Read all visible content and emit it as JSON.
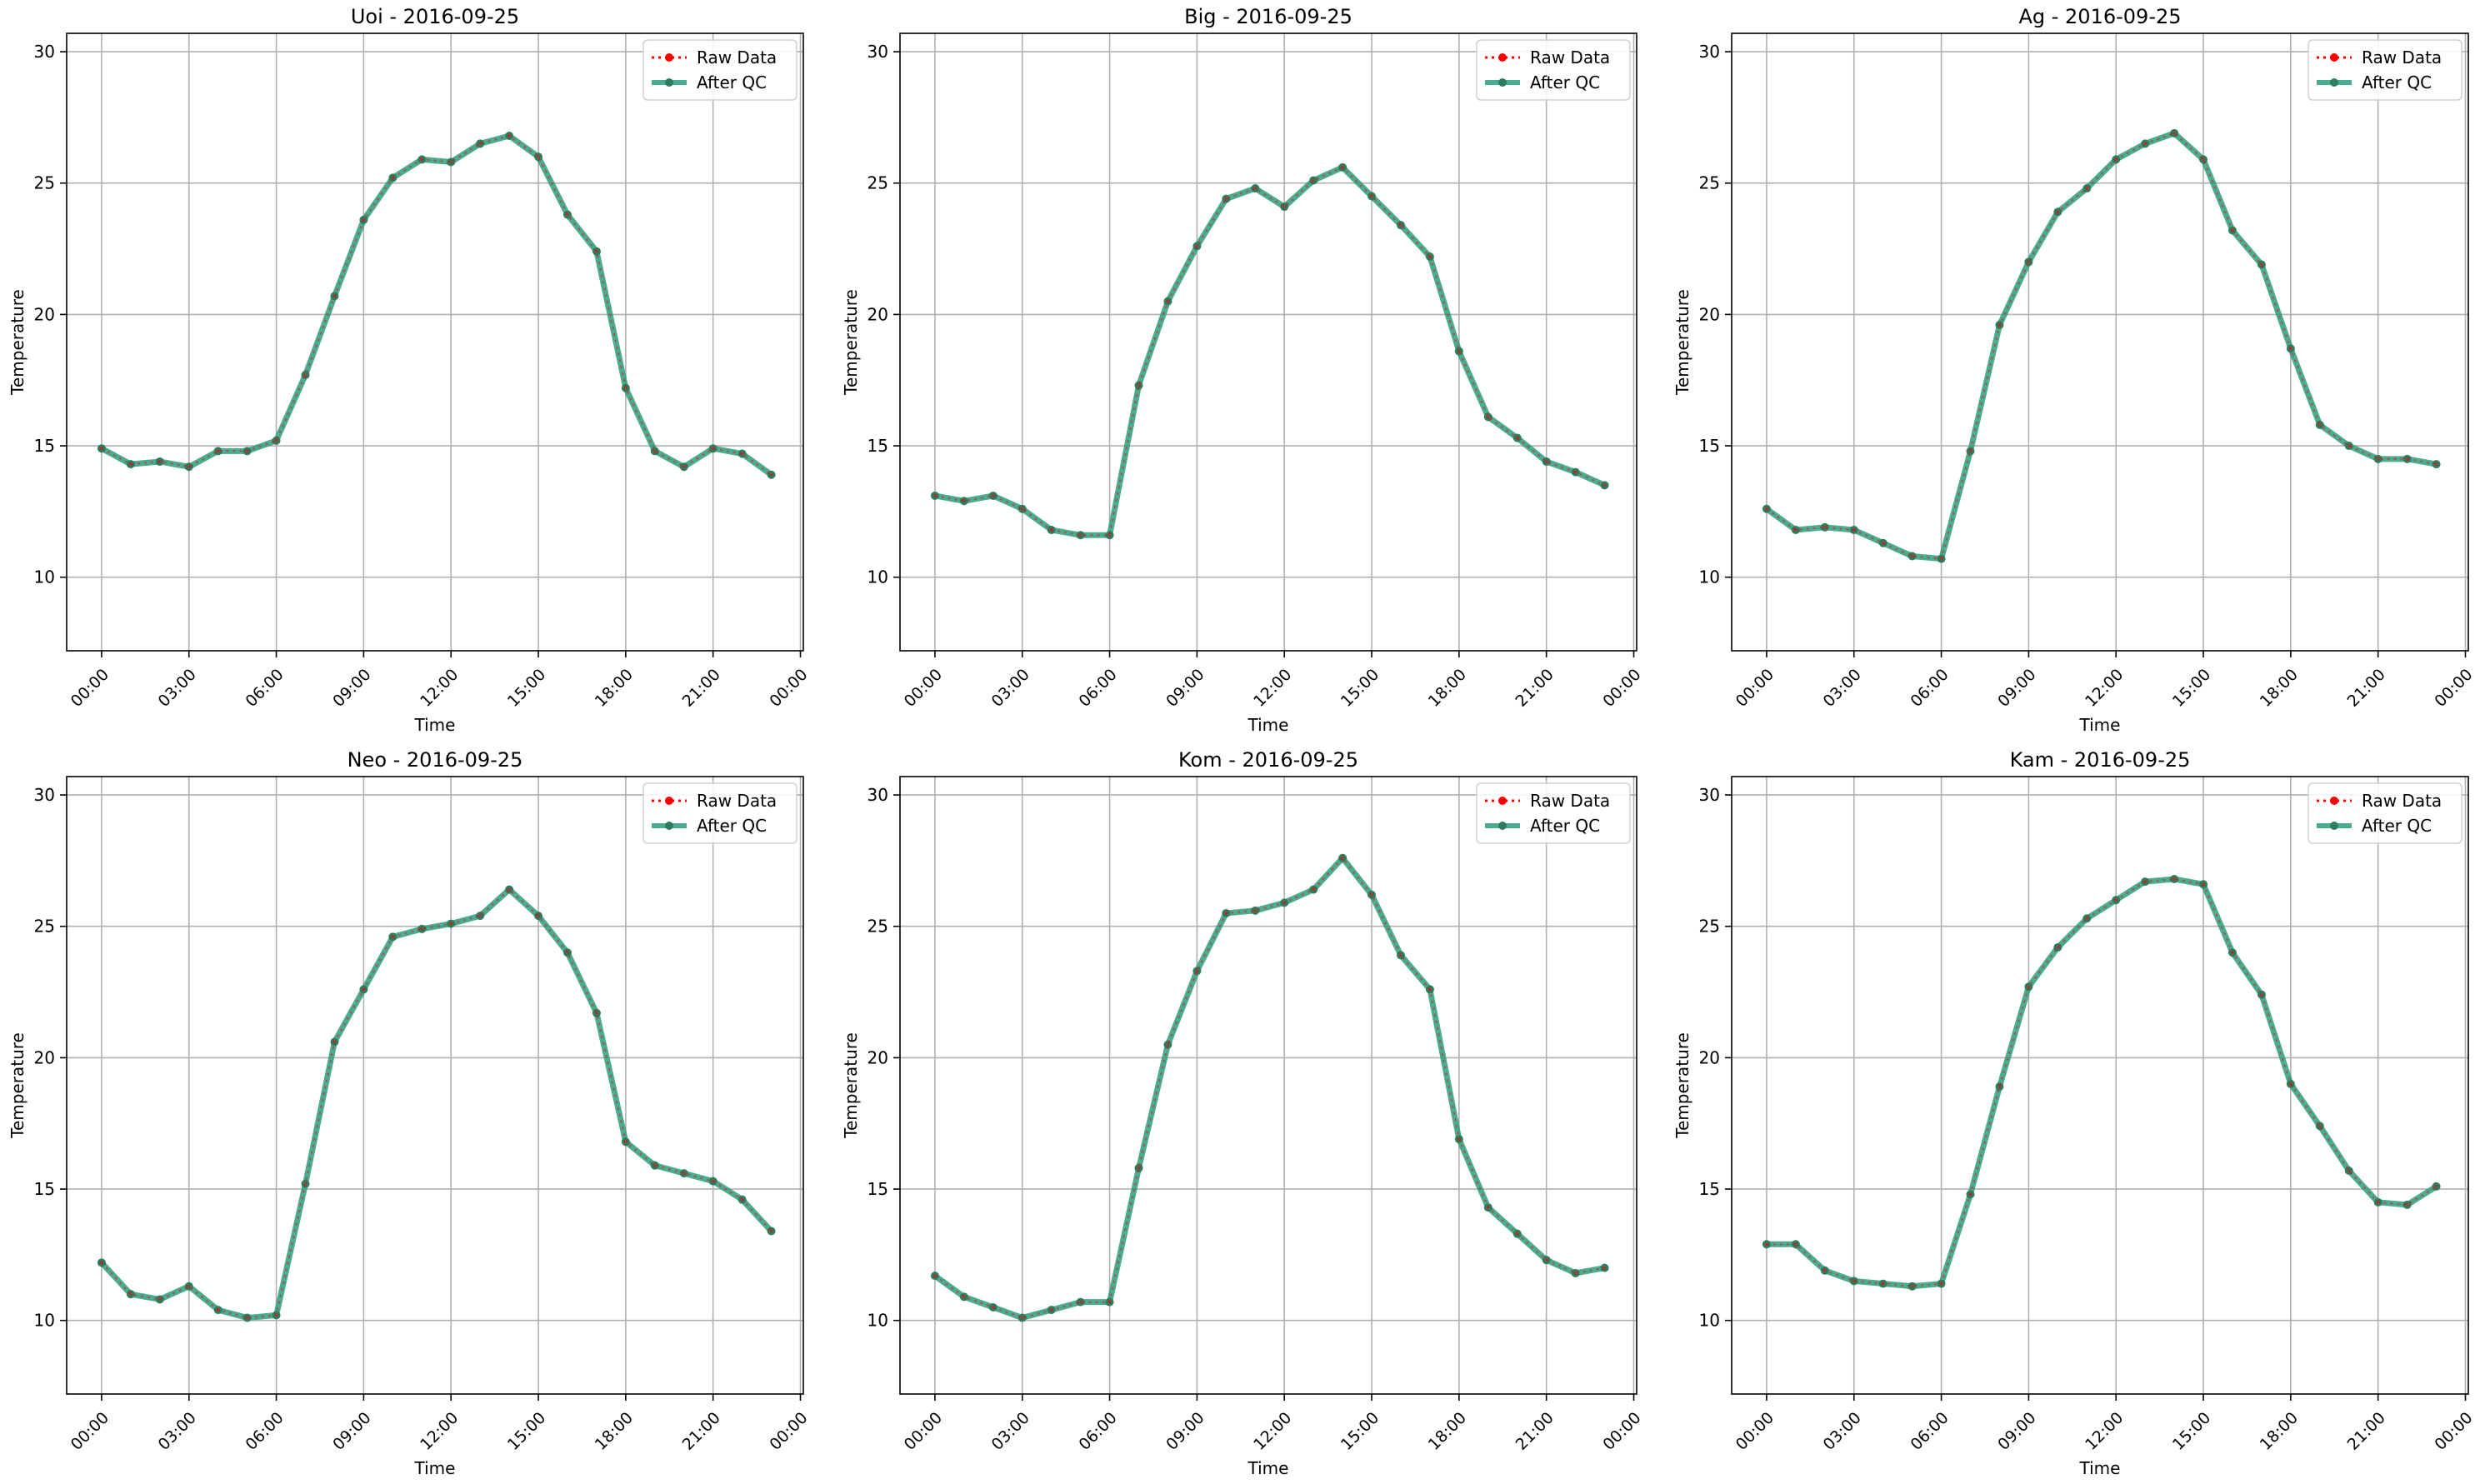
{
  "x_ticks": [
    "00:00",
    "03:00",
    "06:00",
    "09:00",
    "12:00",
    "15:00",
    "18:00",
    "21:00",
    "00:00"
  ],
  "y_ticks": [
    10,
    15,
    20,
    25,
    30
  ],
  "colors": {
    "raw": "#ff0000",
    "qc": "#2a9d7c",
    "marker": "#2e7d60",
    "grid": "#b0b0b0"
  },
  "chart_data": [
    {
      "type": "line",
      "title": "Uoi - 2016-09-25",
      "xlabel": "Time",
      "ylabel": "Temperature",
      "ylim": [
        7.2,
        30.7
      ],
      "xlim": [
        -1.2,
        24.1
      ],
      "legend": "top-right",
      "grid": true,
      "x_hours": [
        0,
        1,
        2,
        3,
        4,
        5,
        6,
        7,
        8,
        9,
        10,
        11,
        12,
        13,
        14,
        15,
        16,
        17,
        18,
        19,
        20,
        21,
        22,
        23
      ],
      "series": [
        {
          "name": "Raw Data",
          "values": [
            14.9,
            14.3,
            14.4,
            14.2,
            14.8,
            14.8,
            15.2,
            17.7,
            20.7,
            23.6,
            25.2,
            25.9,
            25.8,
            26.5,
            26.8,
            26.0,
            23.8,
            22.4,
            17.2,
            14.8,
            14.2,
            14.9,
            14.7,
            13.9
          ]
        },
        {
          "name": "After QC",
          "values": [
            14.9,
            14.3,
            14.4,
            14.2,
            14.8,
            14.8,
            15.2,
            17.7,
            20.7,
            23.6,
            25.2,
            25.9,
            25.8,
            26.5,
            26.8,
            26.0,
            23.8,
            22.4,
            17.2,
            14.8,
            14.2,
            14.9,
            14.7,
            13.9
          ]
        }
      ]
    },
    {
      "type": "line",
      "title": "Big - 2016-09-25",
      "xlabel": "Time",
      "ylabel": "Temperature",
      "ylim": [
        7.2,
        30.7
      ],
      "xlim": [
        -1.2,
        24.1
      ],
      "legend": "top-right",
      "grid": true,
      "x_hours": [
        0,
        1,
        2,
        3,
        4,
        5,
        6,
        7,
        8,
        9,
        10,
        11,
        12,
        13,
        14,
        15,
        16,
        17,
        18,
        19,
        20,
        21,
        22,
        23
      ],
      "series": [
        {
          "name": "Raw Data",
          "values": [
            13.1,
            12.9,
            13.1,
            12.6,
            11.8,
            11.6,
            11.6,
            17.3,
            20.5,
            22.6,
            24.4,
            24.8,
            24.1,
            25.1,
            25.6,
            24.5,
            23.4,
            22.2,
            18.6,
            16.1,
            15.3,
            14.4,
            14.0,
            13.5
          ]
        },
        {
          "name": "After QC",
          "values": [
            13.1,
            12.9,
            13.1,
            12.6,
            11.8,
            11.6,
            11.6,
            17.3,
            20.5,
            22.6,
            24.4,
            24.8,
            24.1,
            25.1,
            25.6,
            24.5,
            23.4,
            22.2,
            18.6,
            16.1,
            15.3,
            14.4,
            14.0,
            13.5
          ]
        }
      ]
    },
    {
      "type": "line",
      "title": "Ag - 2016-09-25",
      "xlabel": "Time",
      "ylabel": "Temperature",
      "ylim": [
        7.2,
        30.7
      ],
      "xlim": [
        -1.2,
        24.1
      ],
      "legend": "top-right",
      "grid": true,
      "x_hours": [
        0,
        1,
        2,
        3,
        4,
        5,
        6,
        7,
        8,
        9,
        10,
        11,
        12,
        13,
        14,
        15,
        16,
        17,
        18,
        19,
        20,
        21,
        22,
        23
      ],
      "series": [
        {
          "name": "Raw Data",
          "values": [
            12.6,
            11.8,
            11.9,
            11.8,
            11.3,
            10.8,
            10.7,
            14.8,
            19.6,
            22.0,
            23.9,
            24.8,
            25.9,
            26.5,
            26.9,
            25.9,
            23.2,
            21.9,
            18.7,
            15.8,
            15.0,
            14.5,
            14.5,
            14.3
          ]
        },
        {
          "name": "After QC",
          "values": [
            12.6,
            11.8,
            11.9,
            11.8,
            11.3,
            10.8,
            10.7,
            14.8,
            19.6,
            22.0,
            23.9,
            24.8,
            25.9,
            26.5,
            26.9,
            25.9,
            23.2,
            21.9,
            18.7,
            15.8,
            15.0,
            14.5,
            14.5,
            14.3
          ]
        }
      ]
    },
    {
      "type": "line",
      "title": "Neo - 2016-09-25",
      "xlabel": "Time",
      "ylabel": "Temperature",
      "ylim": [
        7.2,
        30.7
      ],
      "xlim": [
        -1.2,
        24.1
      ],
      "legend": "top-right",
      "grid": true,
      "x_hours": [
        0,
        1,
        2,
        3,
        4,
        5,
        6,
        7,
        8,
        9,
        10,
        11,
        12,
        13,
        14,
        15,
        16,
        17,
        18,
        19,
        20,
        21,
        22,
        23
      ],
      "series": [
        {
          "name": "Raw Data",
          "values": [
            12.2,
            11.0,
            10.8,
            11.3,
            10.4,
            10.1,
            10.2,
            15.2,
            20.6,
            22.6,
            24.6,
            24.9,
            25.1,
            25.4,
            26.4,
            25.4,
            24.0,
            21.7,
            16.8,
            15.9,
            15.6,
            15.3,
            14.6,
            13.4
          ]
        },
        {
          "name": "After QC",
          "values": [
            12.2,
            11.0,
            10.8,
            11.3,
            10.4,
            10.1,
            10.2,
            15.2,
            20.6,
            22.6,
            24.6,
            24.9,
            25.1,
            25.4,
            26.4,
            25.4,
            24.0,
            21.7,
            16.8,
            15.9,
            15.6,
            15.3,
            14.6,
            13.4
          ]
        }
      ]
    },
    {
      "type": "line",
      "title": "Kom - 2016-09-25",
      "xlabel": "Time",
      "ylabel": "Temperature",
      "ylim": [
        7.2,
        30.7
      ],
      "xlim": [
        -1.2,
        24.1
      ],
      "legend": "top-right",
      "grid": true,
      "x_hours": [
        0,
        1,
        2,
        3,
        4,
        5,
        6,
        7,
        8,
        9,
        10,
        11,
        12,
        13,
        14,
        15,
        16,
        17,
        18,
        19,
        20,
        21,
        22,
        23
      ],
      "series": [
        {
          "name": "Raw Data",
          "values": [
            11.7,
            10.9,
            10.5,
            10.1,
            10.4,
            10.7,
            10.7,
            15.8,
            20.5,
            23.3,
            25.5,
            25.6,
            25.9,
            26.4,
            27.6,
            26.2,
            23.9,
            22.6,
            16.9,
            14.3,
            13.3,
            12.3,
            11.8,
            12.0
          ]
        },
        {
          "name": "After QC",
          "values": [
            11.7,
            10.9,
            10.5,
            10.1,
            10.4,
            10.7,
            10.7,
            15.8,
            20.5,
            23.3,
            25.5,
            25.6,
            25.9,
            26.4,
            27.6,
            26.2,
            23.9,
            22.6,
            16.9,
            14.3,
            13.3,
            12.3,
            11.8,
            12.0
          ]
        }
      ]
    },
    {
      "type": "line",
      "title": "Kam - 2016-09-25",
      "xlabel": "Time",
      "ylabel": "Temperature",
      "ylim": [
        7.2,
        30.7
      ],
      "xlim": [
        -1.2,
        24.1
      ],
      "legend": "top-right",
      "grid": true,
      "x_hours": [
        0,
        1,
        2,
        3,
        4,
        5,
        6,
        7,
        8,
        9,
        10,
        11,
        12,
        13,
        14,
        15,
        16,
        17,
        18,
        19,
        20,
        21,
        22,
        23
      ],
      "series": [
        {
          "name": "Raw Data",
          "values": [
            12.9,
            12.9,
            11.9,
            11.5,
            11.4,
            11.3,
            11.4,
            14.8,
            18.9,
            22.7,
            24.2,
            25.3,
            26.0,
            26.7,
            26.8,
            26.6,
            24.0,
            22.4,
            19.0,
            17.4,
            15.7,
            14.5,
            14.4,
            15.1
          ]
        },
        {
          "name": "After QC",
          "values": [
            12.9,
            12.9,
            11.9,
            11.5,
            11.4,
            11.3,
            11.4,
            14.8,
            18.9,
            22.7,
            24.2,
            25.3,
            26.0,
            26.7,
            26.8,
            26.6,
            24.0,
            22.4,
            19.0,
            17.4,
            15.7,
            14.5,
            14.4,
            15.1
          ]
        }
      ]
    }
  ]
}
